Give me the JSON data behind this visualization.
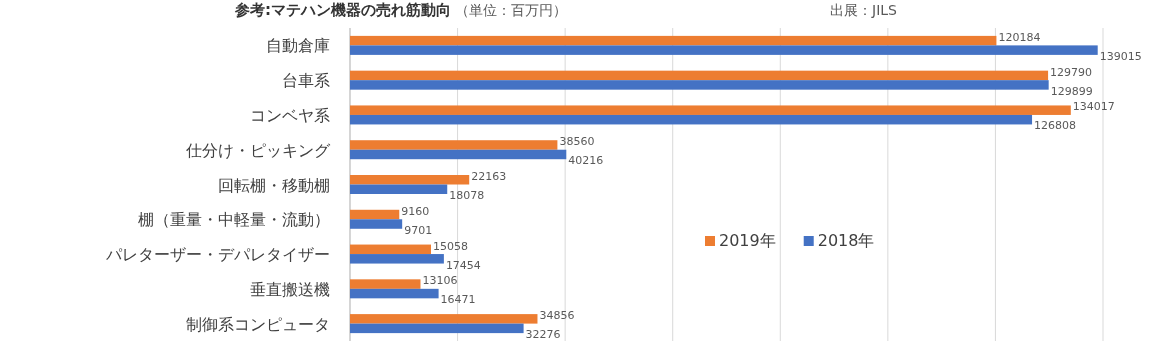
{
  "chart_data": {
    "type": "bar",
    "orientation": "horizontal",
    "title": "参考:マテハン機器の売れ筋動向",
    "subtitle": "（単位：百万円）",
    "annotations": [
      "出展：JILS"
    ],
    "categories": [
      "自動倉庫",
      "台車系",
      "コンベヤ系",
      "仕分け・ピッキング",
      "回転棚・移動棚",
      "棚（重量・中軽量・流動）",
      "パレターザー・デパレタイザー",
      "垂直搬送機",
      "制御系コンピュータ"
    ],
    "series": [
      {
        "name": "2019年",
        "color": "#ed7d31",
        "values": [
          120184,
          129790,
          134017,
          38560,
          22163,
          9160,
          15058,
          13106,
          34856
        ]
      },
      {
        "name": "2018年",
        "color": "#4472c4",
        "values": [
          139015,
          129899,
          126808,
          40216,
          18078,
          9701,
          17454,
          16471,
          32276
        ]
      }
    ],
    "xlim": [
      0,
      140000
    ],
    "xticks": [
      {
        "value": 0,
        "label": null
      },
      {
        "value": 20000,
        "label": null
      },
      {
        "value": 40000,
        "label": null
      },
      {
        "value": 60000,
        "label": null
      },
      {
        "value": 80000,
        "label": null
      },
      {
        "value": 100000,
        "label": null
      },
      {
        "value": 120000,
        "label": null
      },
      {
        "value": 140000,
        "label": null
      }
    ],
    "grid": "x",
    "data_labels": true,
    "legend": "right"
  }
}
